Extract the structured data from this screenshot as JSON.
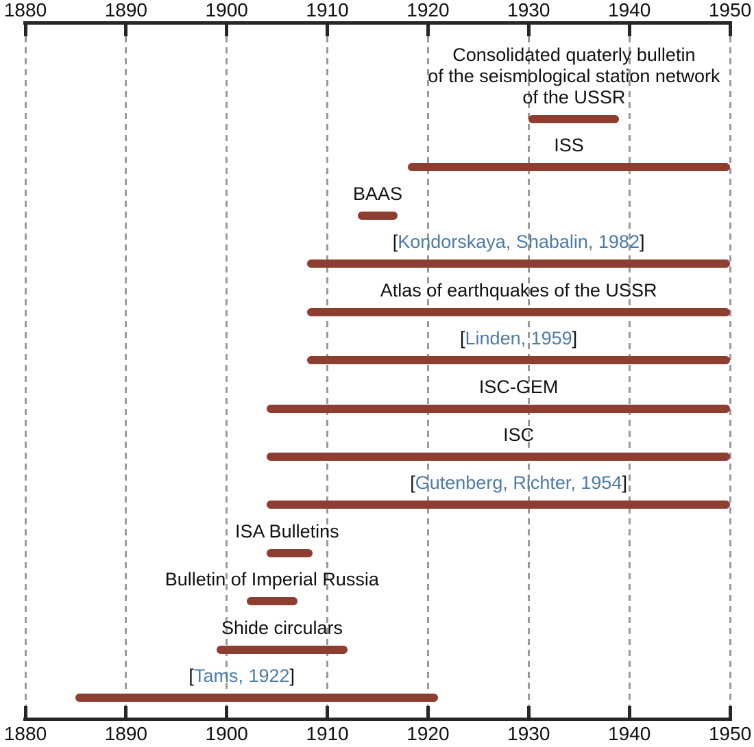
{
  "colors": {
    "bar": "#8e3d31",
    "citation_text": "#4d7ba9",
    "axis": "#262626",
    "gridline": "#9a9a9a",
    "label_text": "#111111"
  },
  "citation_brackets": {
    "open": "[",
    "close": "]"
  },
  "axis": {
    "ticks": [
      "1880",
      "1890",
      "1900",
      "1910",
      "1920",
      "1930",
      "1940",
      "1950"
    ]
  },
  "chart_data": {
    "type": "bar",
    "orientation": "horizontal-interval-timeline",
    "title": "",
    "xlabel": "",
    "ylabel": "",
    "xlim": [
      1880,
      1950
    ],
    "x_ticks": [
      1880,
      1890,
      1900,
      1910,
      1920,
      1930,
      1940,
      1950
    ],
    "grid": "vertical-dashed",
    "rows": [
      {
        "label": "Consolidated quaterly bulletin of the seismological station network of the USSR",
        "label_lines": [
          "Consolidated quaterly bulletin",
          "of the seismological station network",
          "of the USSR"
        ],
        "citation": false,
        "start": 1930,
        "end": 1939,
        "label_anchor": 1934.5
      },
      {
        "label": "ISS",
        "citation": false,
        "start": 1918,
        "end": 1950,
        "label_anchor": 1934
      },
      {
        "label": "BAAS",
        "citation": false,
        "start": 1913,
        "end": 1917,
        "label_anchor": 1915
      },
      {
        "label": "Kondorskaya, Shabalin, 1982",
        "citation": true,
        "start": 1908,
        "end": 1950,
        "label_anchor": 1929
      },
      {
        "label": "Atlas of earthquakes of the USSR",
        "citation": false,
        "start": 1908,
        "end": 1950,
        "label_anchor": 1929
      },
      {
        "label": "Linden, 1959",
        "citation": true,
        "start": 1908,
        "end": 1950,
        "label_anchor": 1929
      },
      {
        "label": "ISC-GEM",
        "citation": false,
        "start": 1904,
        "end": 1950,
        "label_anchor": 1929
      },
      {
        "label": "ISC",
        "citation": false,
        "start": 1904,
        "end": 1950,
        "label_anchor": 1929
      },
      {
        "label": "Gutenberg, Richter, 1954",
        "citation": true,
        "start": 1904,
        "end": 1950,
        "label_anchor": 1929
      },
      {
        "label": "ISA Bulletins",
        "citation": false,
        "start": 1904,
        "end": 1908.5,
        "label_anchor": 1906
      },
      {
        "label": "Bulletin of Imperial Russia",
        "citation": false,
        "start": 1902,
        "end": 1907,
        "label_anchor": 1904.5
      },
      {
        "label": "Shide circulars",
        "citation": false,
        "start": 1899,
        "end": 1912,
        "label_anchor": 1905.5
      },
      {
        "label": "Tams, 1922",
        "citation": true,
        "start": 1885,
        "end": 1921,
        "label_anchor": 1901.5
      }
    ]
  }
}
